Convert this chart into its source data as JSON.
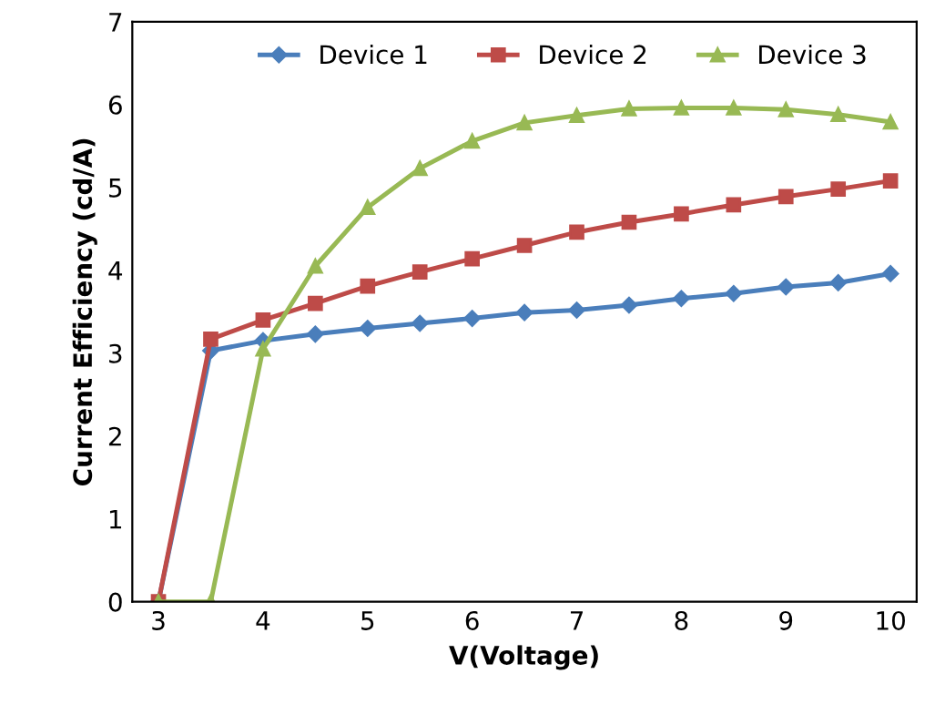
{
  "chart_data": {
    "type": "line",
    "xlabel": "V(Voltage)",
    "ylabel": "Current Efficiency (cd/A)",
    "x": [
      3,
      3.5,
      4,
      4.5,
      5,
      5.5,
      6,
      6.5,
      7,
      7.5,
      8,
      8.5,
      9,
      9.5,
      10
    ],
    "series": [
      {
        "name": "Device 1",
        "color": "#4a7ebb",
        "marker": "diamond",
        "values": [
          0,
          3.03,
          3.15,
          3.23,
          3.3,
          3.36,
          3.42,
          3.49,
          3.52,
          3.58,
          3.66,
          3.72,
          3.8,
          3.85,
          3.96
        ]
      },
      {
        "name": "Device 2",
        "color": "#be4b48",
        "marker": "square",
        "values": [
          0,
          3.17,
          3.4,
          3.6,
          3.81,
          3.98,
          4.14,
          4.3,
          4.46,
          4.58,
          4.68,
          4.79,
          4.89,
          4.98,
          5.08
        ]
      },
      {
        "name": "Device 3",
        "color": "#98b954",
        "marker": "triangle",
        "values": [
          0,
          0,
          3.05,
          4.05,
          4.76,
          5.23,
          5.56,
          5.78,
          5.87,
          5.95,
          5.96,
          5.96,
          5.94,
          5.88,
          5.79
        ]
      }
    ],
    "xlim": [
      2.75,
      10.25
    ],
    "xticks": [
      3,
      4,
      5,
      6,
      7,
      8,
      9,
      10
    ],
    "ylim": [
      0,
      7
    ],
    "yticks": [
      0,
      1,
      2,
      3,
      4,
      5,
      6,
      7
    ],
    "grid": false,
    "legend": "top",
    "line_style": "solid"
  }
}
